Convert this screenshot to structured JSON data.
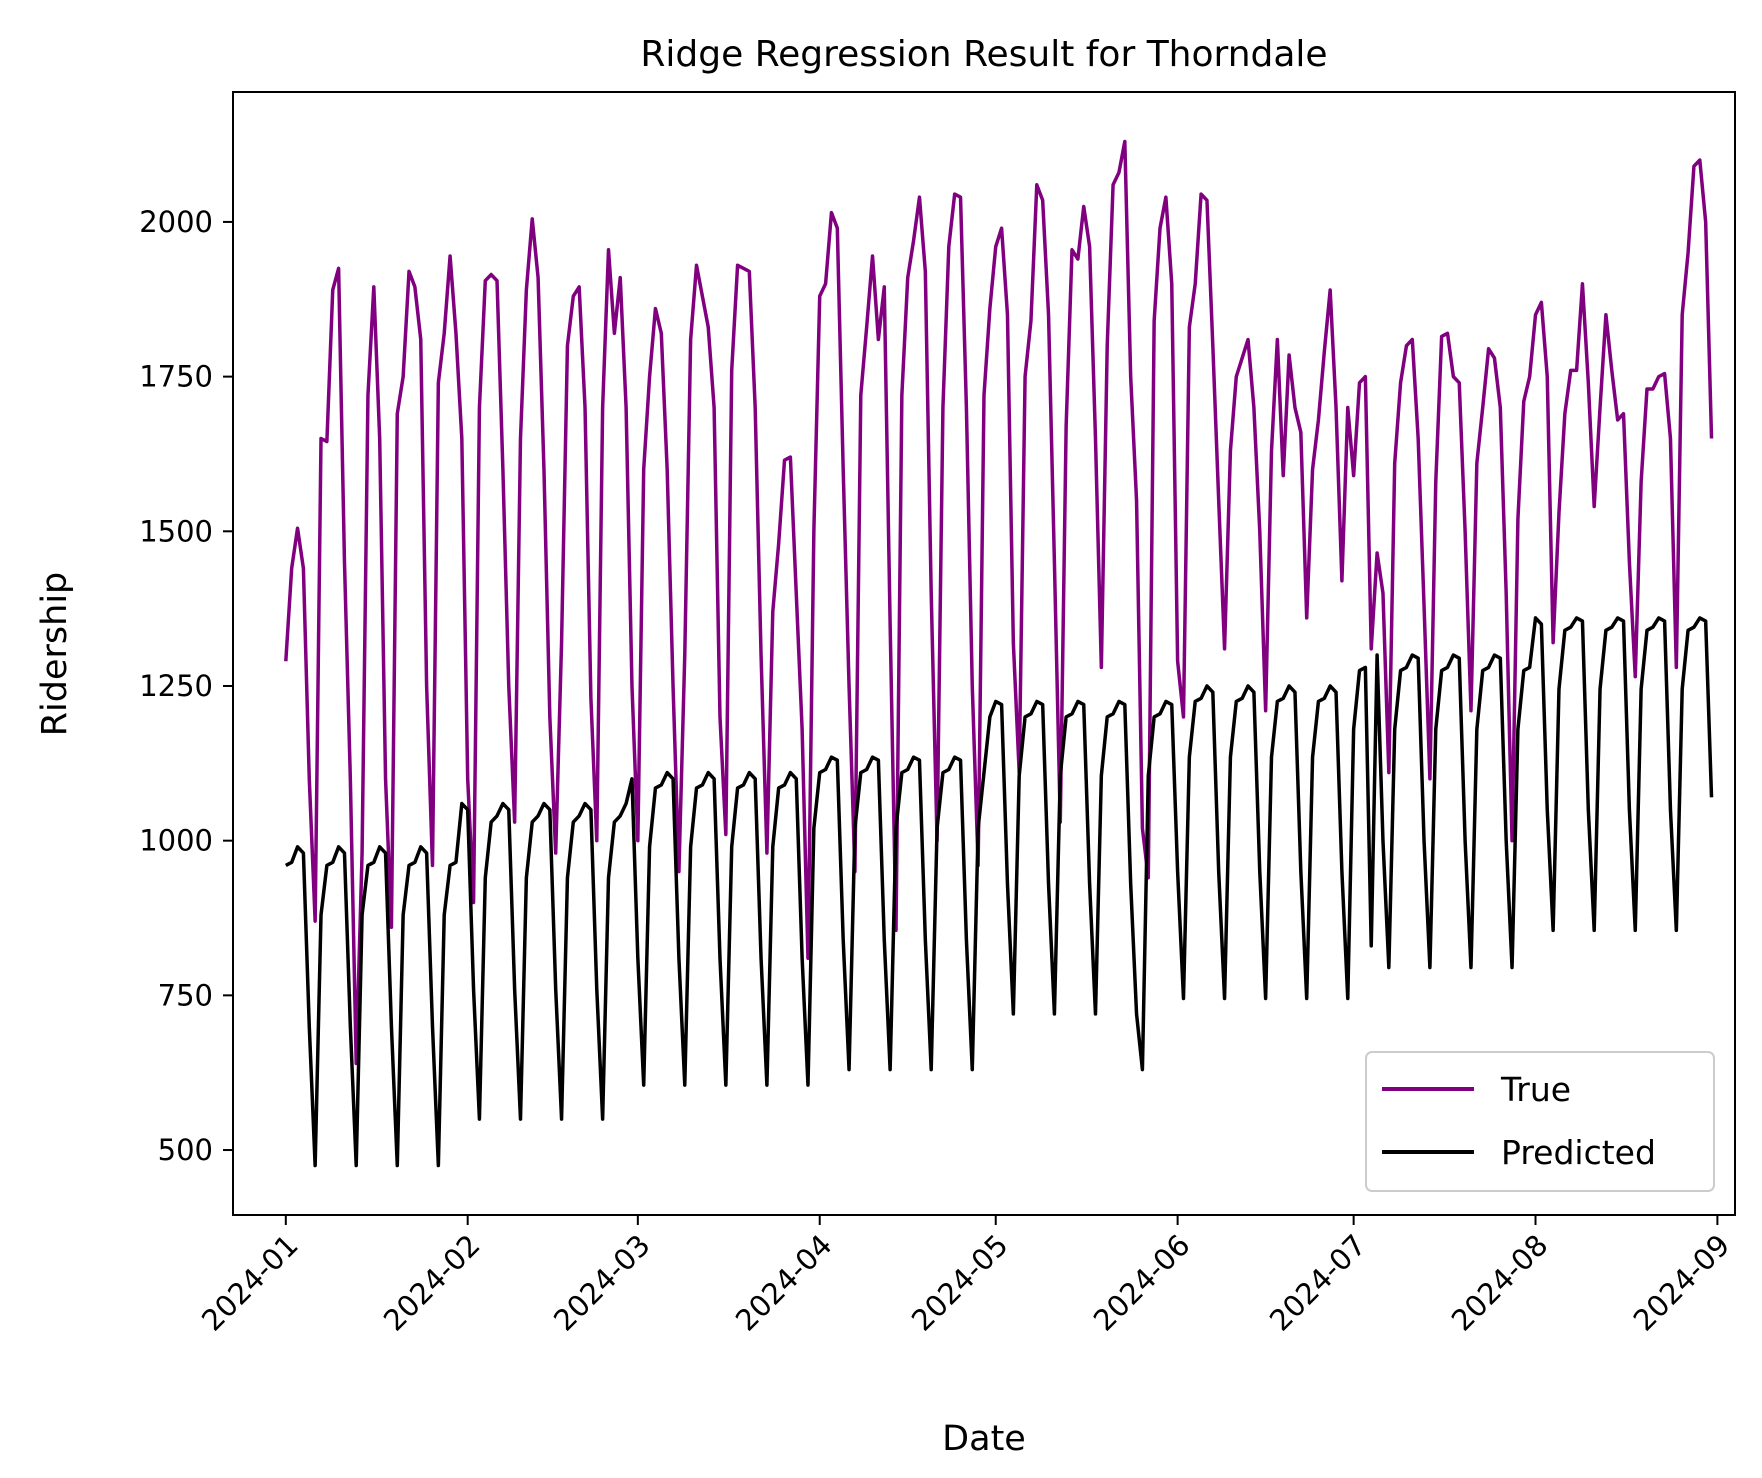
{
  "chart_data": {
    "type": "line",
    "title": "Ridge Regression Result for Thorndale",
    "xlabel": "Date",
    "ylabel": "Ridership",
    "xlim": [
      "2023-12-23",
      "2024-09-04"
    ],
    "ylim": [
      395,
      2210
    ],
    "x_ticks": [
      "2024-01",
      "2024-02",
      "2024-03",
      "2024-04",
      "2024-05",
      "2024-06",
      "2024-07",
      "2024-08",
      "2024-09"
    ],
    "y_ticks": [
      500,
      750,
      1000,
      1250,
      1500,
      1750,
      2000
    ],
    "legend": {
      "location": "lower-right",
      "entries": [
        "True",
        "Predicted"
      ]
    },
    "x_start": "2024-01-01",
    "x_step": "1 day",
    "series": [
      {
        "name": "True",
        "color": "#800080",
        "values": [
          1290,
          1440,
          1505,
          1440,
          1100,
          870,
          1650,
          1645,
          1890,
          1925,
          1450,
          1100,
          640,
          980,
          1720,
          1895,
          1650,
          1100,
          860,
          1690,
          1750,
          1920,
          1895,
          1810,
          1250,
          960,
          1740,
          1820,
          1945,
          1820,
          1650,
          1100,
          900,
          1700,
          1905,
          1915,
          1905,
          1600,
          1250,
          1030,
          1650,
          1890,
          2005,
          1910,
          1600,
          1200,
          980,
          1320,
          1800,
          1880,
          1895,
          1700,
          1230,
          1000,
          1700,
          1955,
          1820,
          1910,
          1700,
          1250,
          1000,
          1600,
          1750,
          1860,
          1820,
          1600,
          1250,
          950,
          1300,
          1810,
          1930,
          1880,
          1830,
          1700,
          1200,
          1010,
          1760,
          1930,
          1925,
          1920,
          1700,
          1300,
          980,
          1370,
          1480,
          1615,
          1620,
          1400,
          1180,
          810,
          1500,
          1880,
          1900,
          2015,
          1990,
          1600,
          1250,
          950,
          1720,
          1830,
          1945,
          1810,
          1895,
          1350,
          855,
          1720,
          1910,
          1970,
          2040,
          1920,
          1400,
          1000,
          1700,
          1960,
          2045,
          2040,
          1700,
          1250,
          960,
          1720,
          1860,
          1960,
          1990,
          1850,
          1320,
          1110,
          1750,
          1840,
          2060,
          2035,
          1850,
          1450,
          1030,
          1670,
          1955,
          1940,
          2025,
          1960,
          1650,
          1280,
          1800,
          2060,
          2080,
          2130,
          1750,
          1550,
          1020,
          940,
          1840,
          1990,
          2040,
          1900,
          1290,
          1200,
          1830,
          1900,
          2045,
          2035,
          1800,
          1550,
          1310,
          1630,
          1750,
          1780,
          1810,
          1700,
          1500,
          1210,
          1630,
          1810,
          1590,
          1785,
          1700,
          1660,
          1360,
          1600,
          1680,
          1790,
          1890,
          1700,
          1420,
          1700,
          1590,
          1740,
          1750,
          1310,
          1465,
          1400,
          1110,
          1610,
          1740,
          1800,
          1810,
          1650,
          1380,
          1100,
          1580,
          1815,
          1820,
          1750,
          1740,
          1500,
          1210,
          1610,
          1700,
          1795,
          1780,
          1700,
          1400,
          1000,
          1520,
          1710,
          1750,
          1850,
          1870,
          1750,
          1320,
          1530,
          1690,
          1760,
          1760,
          1900,
          1740,
          1540,
          1700,
          1850,
          1760,
          1680,
          1690,
          1450,
          1265,
          1580,
          1730,
          1730,
          1750,
          1755,
          1650,
          1280,
          1850,
          1950,
          2090,
          2100,
          2000,
          1650
        ]
      },
      {
        "name": "Predicted",
        "color": "#000000",
        "values": [
          960,
          965,
          990,
          980,
          700,
          475,
          880,
          960,
          965,
          990,
          980,
          700,
          475,
          880,
          960,
          965,
          990,
          980,
          700,
          475,
          880,
          960,
          965,
          990,
          980,
          700,
          475,
          880,
          960,
          965,
          1060,
          1050,
          760,
          550,
          940,
          1030,
          1040,
          1060,
          1050,
          760,
          550,
          940,
          1030,
          1040,
          1060,
          1050,
          760,
          550,
          940,
          1030,
          1040,
          1060,
          1050,
          760,
          550,
          940,
          1030,
          1040,
          1060,
          1100,
          810,
          605,
          990,
          1085,
          1090,
          1110,
          1100,
          810,
          605,
          990,
          1085,
          1090,
          1110,
          1100,
          810,
          605,
          990,
          1085,
          1090,
          1110,
          1100,
          810,
          605,
          990,
          1085,
          1090,
          1110,
          1100,
          810,
          605,
          1020,
          1110,
          1115,
          1135,
          1130,
          840,
          630,
          1020,
          1110,
          1115,
          1135,
          1130,
          840,
          630,
          1020,
          1110,
          1115,
          1135,
          1130,
          840,
          630,
          1020,
          1110,
          1115,
          1135,
          1130,
          840,
          630,
          1020,
          1110,
          1200,
          1225,
          1220,
          930,
          720,
          1105,
          1200,
          1205,
          1225,
          1220,
          930,
          720,
          1105,
          1200,
          1205,
          1225,
          1220,
          930,
          720,
          1105,
          1200,
          1205,
          1225,
          1220,
          930,
          720,
          630,
          1105,
          1200,
          1205,
          1225,
          1220,
          950,
          745,
          1135,
          1225,
          1230,
          1250,
          1240,
          950,
          745,
          1135,
          1225,
          1230,
          1250,
          1240,
          950,
          745,
          1135,
          1225,
          1230,
          1250,
          1240,
          950,
          745,
          1135,
          1225,
          1230,
          1250,
          1240,
          950,
          745,
          1180,
          1275,
          1280,
          830,
          1300,
          1000,
          795,
          1180,
          1275,
          1280,
          1300,
          1295,
          1000,
          795,
          1180,
          1275,
          1280,
          1300,
          1295,
          1000,
          795,
          1180,
          1275,
          1280,
          1300,
          1295,
          1000,
          795,
          1180,
          1275,
          1280,
          1360,
          1350,
          1050,
          855,
          1245,
          1340,
          1345,
          1360,
          1355,
          1050,
          855,
          1245,
          1340,
          1345,
          1360,
          1355,
          1050,
          855,
          1245,
          1340,
          1345,
          1360,
          1355,
          1050,
          855,
          1245,
          1340,
          1345,
          1360,
          1355,
          1070
        ]
      }
    ]
  }
}
